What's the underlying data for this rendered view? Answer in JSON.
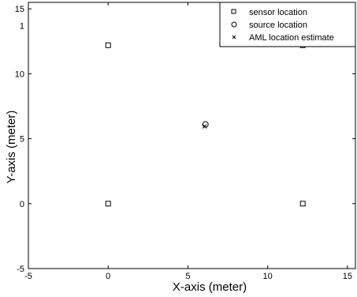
{
  "chart_data": {
    "type": "scatter",
    "title": "",
    "xlabel": "X-axis (meter)",
    "ylabel": "Y-axis (meter)",
    "xlim": [
      -5,
      15.5
    ],
    "ylim": [
      -5,
      15.5
    ],
    "x_ticks": [
      -5,
      0,
      5,
      10,
      15
    ],
    "y_ticks": [
      -5,
      0,
      5,
      10,
      15
    ],
    "x_tick_labels": [
      "-5",
      "0",
      "5",
      "10",
      "15"
    ],
    "y_tick_labels": [
      "-5",
      "0",
      "5",
      "10",
      "15"
    ],
    "y_extra_tick_label": {
      "value": 13.7,
      "label": "1"
    },
    "grid": false,
    "legend_position": "top-right",
    "series": [
      {
        "name": "sensor location",
        "marker": "square",
        "points": [
          {
            "x": 0,
            "y": 12.2
          },
          {
            "x": 12.2,
            "y": 12.2
          },
          {
            "x": 0,
            "y": 0
          },
          {
            "x": 12.2,
            "y": 0
          }
        ]
      },
      {
        "name": "source location",
        "marker": "circle",
        "points": [
          {
            "x": 6.1,
            "y": 6.1
          }
        ]
      },
      {
        "name": "AML location estimate",
        "marker": "x",
        "points": [
          {
            "x": 6.05,
            "y": 5.95
          }
        ]
      }
    ]
  }
}
